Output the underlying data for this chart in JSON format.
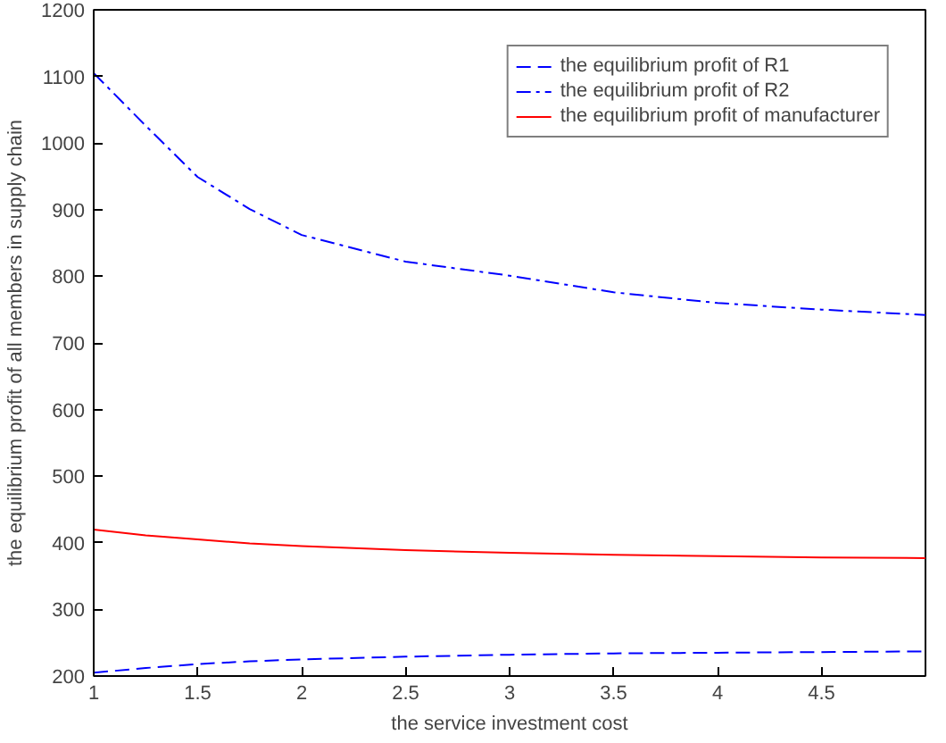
{
  "chart_data": {
    "type": "line",
    "xlabel": "the service investment cost",
    "ylabel": "the equilibrium profit of all members in supply chain",
    "x": [
      1,
      1.25,
      1.5,
      1.75,
      2,
      2.5,
      3,
      3.5,
      4,
      4.5,
      5
    ],
    "series": [
      {
        "name": "the equilibrium profit of R1",
        "color": "#0000ff",
        "line_style": "dashed",
        "values": [
          205,
          212,
          218,
          222,
          225,
          229,
          232,
          234,
          235,
          236,
          237
        ]
      },
      {
        "name": "the equilibrium profit of R2",
        "color": "#0000ff",
        "line_style": "dashdot",
        "values": [
          1105,
          1026,
          949,
          901,
          862,
          822,
          801,
          776,
          760,
          750,
          742
        ]
      },
      {
        "name": "the equilibrium profit of manufacturer",
        "color": "#ff0000",
        "line_style": "solid",
        "values": [
          420,
          411,
          405,
          399,
          395,
          389,
          385,
          382,
          380,
          378,
          377
        ]
      }
    ],
    "xlim": [
      1,
      5
    ],
    "ylim": [
      200,
      1200
    ],
    "xticks": [
      1,
      1.5,
      2,
      2.5,
      3,
      3.5,
      4,
      4.5
    ],
    "yticks": [
      200,
      300,
      400,
      500,
      600,
      700,
      800,
      900,
      1000,
      1100,
      1200
    ],
    "grid": false,
    "legend": "top right"
  }
}
